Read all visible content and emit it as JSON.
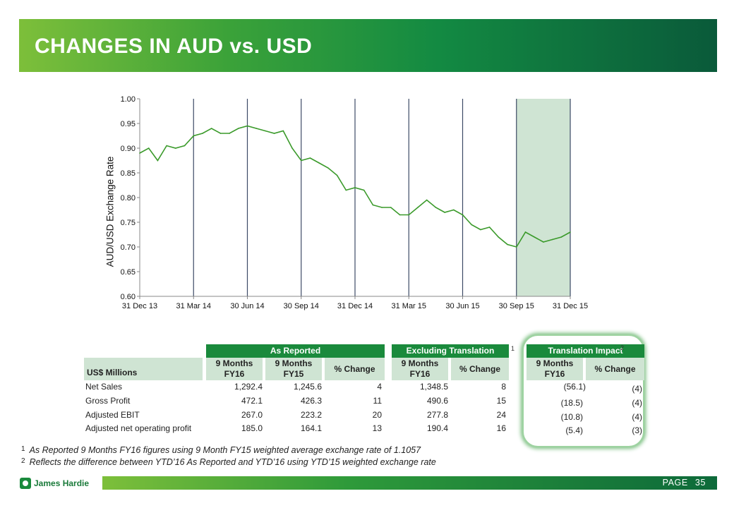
{
  "header": {
    "title": "CHANGES IN AUD vs. USD"
  },
  "chart_data": {
    "type": "line",
    "ylabel": "AUD/USD Exchange Rate",
    "xlabel": "",
    "ylim": [
      0.6,
      1.0
    ],
    "yticks": [
      "0.60",
      "0.65",
      "0.70",
      "0.75",
      "0.80",
      "0.85",
      "0.90",
      "0.95",
      "1.00"
    ],
    "x_tick_labels": [
      "31 Dec 13",
      "31 Mar 14",
      "30 Jun 14",
      "30 Sep 14",
      "31 Dec 14",
      "31 Mar 15",
      "30 Jun 15",
      "30 Sep 15",
      "31 Dec 15"
    ],
    "highlight_range": [
      "30 Sep 15",
      "31 Dec 15"
    ],
    "line_color": "#3a9a2a",
    "highlight_color": "#cfe4d3",
    "series": [
      {
        "x": [
          "31 Dec 13",
          "15 Jan 14",
          "31 Jan 14",
          "15 Feb 14",
          "28 Feb 14",
          "15 Mar 14",
          "31 Mar 14",
          "15 Apr 14",
          "30 Apr 14",
          "15 May 14",
          "31 May 14",
          "15 Jun 14",
          "30 Jun 14",
          "15 Jul 14",
          "31 Jul 14",
          "15 Aug 14",
          "31 Aug 14",
          "15 Sep 14",
          "30 Sep 14",
          "15 Oct 14",
          "31 Oct 14",
          "15 Nov 14",
          "30 Nov 14",
          "15 Dec 14",
          "31 Dec 14",
          "15 Jan 15",
          "31 Jan 15",
          "15 Feb 15",
          "28 Feb 15",
          "15 Mar 15",
          "31 Mar 15",
          "15 Apr 15",
          "30 Apr 15",
          "15 May 15",
          "31 May 15",
          "15 Jun 15",
          "30 Jun 15",
          "15 Jul 15",
          "31 Jul 15",
          "15 Aug 15",
          "31 Aug 15",
          "15 Sep 15",
          "30 Sep 15",
          "15 Oct 15",
          "31 Oct 15",
          "15 Nov 15",
          "30 Nov 15",
          "15 Dec 15",
          "31 Dec 15"
        ],
        "values": [
          0.89,
          0.9,
          0.875,
          0.905,
          0.9,
          0.905,
          0.925,
          0.93,
          0.94,
          0.93,
          0.93,
          0.94,
          0.945,
          0.94,
          0.935,
          0.93,
          0.935,
          0.9,
          0.875,
          0.88,
          0.87,
          0.86,
          0.845,
          0.815,
          0.82,
          0.815,
          0.785,
          0.78,
          0.78,
          0.765,
          0.765,
          0.78,
          0.795,
          0.78,
          0.77,
          0.775,
          0.765,
          0.745,
          0.735,
          0.74,
          0.72,
          0.705,
          0.7,
          0.73,
          0.72,
          0.71,
          0.715,
          0.72,
          0.73
        ]
      }
    ]
  },
  "table": {
    "group_headers": [
      "As Reported",
      "Excluding Translation Impact",
      "Translation Impact"
    ],
    "group_footnotes": [
      "1",
      "2"
    ],
    "row_header": "US$ Millions",
    "sub_headers": [
      [
        "9 Months FY16",
        "9 Months FY15",
        "% Change"
      ],
      [
        "9 Months FY16",
        "% Change"
      ],
      [
        "9 Months FY16",
        "% Change"
      ]
    ],
    "rows": [
      {
        "label": "Net Sales",
        "ar16": "1,292.4",
        "ar15": "1,245.6",
        "arch": "4",
        "ex16": "1,348.5",
        "exch": "8",
        "ti16": "(56.1)",
        "tich": "(4)"
      },
      {
        "label": "Gross Profit",
        "ar16": "472.1",
        "ar15": "426.3",
        "arch": "11",
        "ex16": "490.6",
        "exch": "15",
        "ti16": "(18.5)",
        "tich": "(4)"
      },
      {
        "label": "Adjusted EBIT",
        "ar16": "267.0",
        "ar15": "223.2",
        "arch": "20",
        "ex16": "277.8",
        "exch": "24",
        "ti16": "(10.8)",
        "tich": "(4)"
      },
      {
        "label": "Adjusted net operating profit",
        "ar16": "185.0",
        "ar15": "164.1",
        "arch": "13",
        "ex16": "190.4",
        "exch": "16",
        "ti16": "(5.4)",
        "tich": "(3)"
      }
    ]
  },
  "footnotes": [
    {
      "num": "1",
      "text": "As Reported 9 Months FY16 figures using 9 Month FY15 weighted average exchange rate of 1.1057"
    },
    {
      "num": "2",
      "text": "Reflects the difference between YTD’16 As Reported and YTD’16 using YTD’15 weighted exchange rate"
    }
  ],
  "footer": {
    "logo_text": "James Hardie",
    "page_label": "PAGE",
    "page_number": "35"
  }
}
